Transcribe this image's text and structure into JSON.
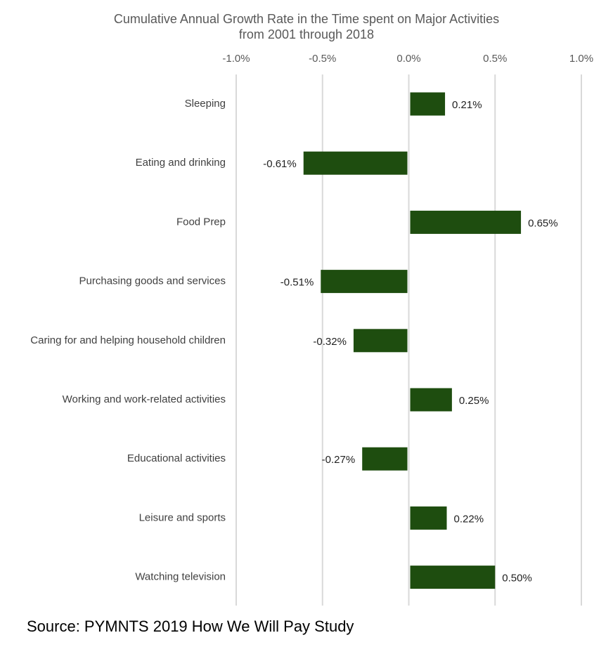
{
  "chart_data": {
    "type": "hbar",
    "title": [
      "Cumulative Annual Growth Rate in the Time spent on Major Activities",
      "from 2001 through 2018"
    ],
    "categories": [
      "Sleeping",
      "Eating and drinking",
      "Food Prep",
      "Purchasing goods and services",
      "Caring for and helping household children",
      "Working and work-related activities",
      "Educational activities",
      "Leisure and sports",
      "Watching television"
    ],
    "values": [
      0.21,
      -0.61,
      0.65,
      -0.51,
      -0.32,
      0.25,
      -0.27,
      0.22,
      0.5
    ],
    "value_labels": [
      "0.21%",
      "-0.61%",
      "0.65%",
      "-0.51%",
      "-0.32%",
      "0.25%",
      "-0.27%",
      "0.22%",
      "0.50%"
    ],
    "color": "#1e4d0f",
    "xlim": [
      -1.0,
      1.0
    ],
    "xticks": [
      {
        "value": -1.0,
        "label": "-1.0%"
      },
      {
        "value": -0.5,
        "label": "-0.5%"
      },
      {
        "value": 0,
        "label": "0.0%"
      },
      {
        "value": 0.5,
        "label": "0.5%"
      },
      {
        "value": 1.0,
        "label": "1.0%"
      }
    ],
    "grid": true,
    "source": "Source: PYMNTS 2019 How We Will Pay Study"
  }
}
